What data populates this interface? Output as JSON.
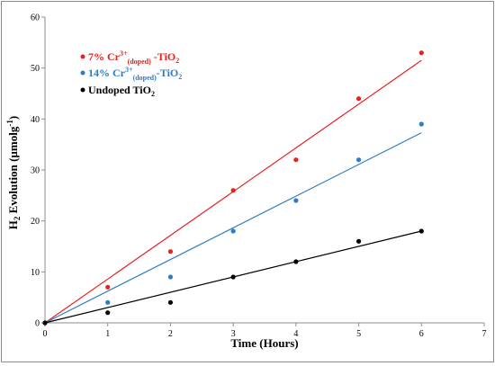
{
  "chart_data": {
    "type": "scatter",
    "xlabel": "Time (Hours)",
    "ylabel": {
      "prefix": "H",
      "sub": "2",
      "rest": " Evolution  (µmolg",
      "sup": "-1",
      "end": ")"
    },
    "xlim": [
      0,
      7
    ],
    "ylim": [
      0,
      60
    ],
    "x_ticks": [
      0,
      1,
      2,
      3,
      4,
      5,
      6,
      7
    ],
    "y_ticks": [
      0,
      10,
      20,
      30,
      40,
      50,
      60
    ],
    "grid": false,
    "legend_position": "top-left",
    "series": [
      {
        "name": "7% Cr3+(doped) -TiO2",
        "legend": {
          "pre": "7% Cr",
          "sup": "3+",
          "sub": "(doped)",
          "mid": " -TiO",
          "sub2": "2"
        },
        "color": "#e8201e",
        "x": [
          0,
          1,
          2,
          3,
          4,
          5,
          6
        ],
        "y": [
          0,
          7,
          14,
          26,
          32,
          44,
          53
        ],
        "trend": {
          "x": [
            0,
            6
          ],
          "y": [
            0,
            51.5
          ]
        }
      },
      {
        "name": "14% Cr3+(doped)-TiO2",
        "legend": {
          "pre": "14% Cr",
          "sup": "3+",
          "sub": "(doped)",
          "mid": "-TiO",
          "sub2": "2"
        },
        "color": "#2e7cc4",
        "x": [
          0,
          1,
          2,
          3,
          4,
          5,
          6
        ],
        "y": [
          0,
          4,
          9,
          18,
          24,
          32,
          39
        ],
        "trend": {
          "x": [
            0,
            6
          ],
          "y": [
            0,
            37.3
          ]
        }
      },
      {
        "name": "Undoped TiO2",
        "legend": {
          "pre": "Undoped TiO",
          "sup": "",
          "sub": "",
          "mid": "",
          "sub2": "2"
        },
        "color": "#000000",
        "x": [
          0,
          1,
          2,
          3,
          4,
          5,
          6
        ],
        "y": [
          0,
          2,
          4,
          9,
          12,
          16,
          18
        ],
        "trend": {
          "x": [
            0,
            6
          ],
          "y": [
            0,
            18
          ]
        }
      }
    ]
  }
}
